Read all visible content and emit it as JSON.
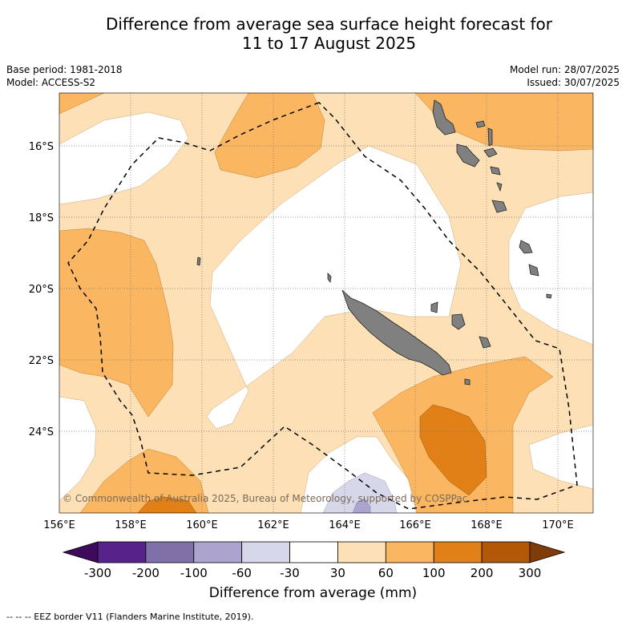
{
  "title_line1": "Difference from average sea surface height forecast for",
  "title_line2": "11 to 17 August 2025",
  "meta_left": [
    "Base period: 1981-2018",
    "Model: ACCESS-S2"
  ],
  "meta_right": [
    "Model run: 28/07/2025",
    "Issued: 30/07/2025"
  ],
  "copyright": "© Commonwealth of Australia 2025, Bureau of Meteorology, supported by COSPPac",
  "footer": "--  --  -- EEZ border V11 (Flanders Marine Institute, 2019).",
  "map": {
    "lon_range": [
      156,
      171
    ],
    "lat_range": [
      -26.2,
      -14.4
    ],
    "lat_ticks": [
      {
        "value": -16,
        "label": "16°S"
      },
      {
        "value": -18,
        "label": "18°S"
      },
      {
        "value": -20,
        "label": "20°S"
      },
      {
        "value": -22,
        "label": "22°S"
      },
      {
        "value": -24,
        "label": "24°S"
      }
    ],
    "lon_ticks": [
      {
        "value": 156,
        "label": "156°E"
      },
      {
        "value": 158,
        "label": "158°E"
      },
      {
        "value": 160,
        "label": "160°E"
      },
      {
        "value": 162,
        "label": "162°E"
      },
      {
        "value": 164,
        "label": "164°E"
      },
      {
        "value": 166,
        "label": "166°E"
      },
      {
        "value": 168,
        "label": "168°E"
      },
      {
        "value": 170,
        "label": "170°E"
      }
    ],
    "land_color": "#808080"
  },
  "colorbar": {
    "title": "Difference from average (mm)",
    "colors": [
      "#3d0a5c",
      "#57238a",
      "#8070aa",
      "#aca3cf",
      "#d7d7ea",
      "#ffffff",
      "#fde0b5",
      "#fbb661",
      "#e08016",
      "#b35806",
      "#7f3b08"
    ],
    "labels": [
      "-300",
      "-200",
      "-100",
      "-60",
      "-30",
      "30",
      "60",
      "100",
      "200",
      "300"
    ]
  }
}
